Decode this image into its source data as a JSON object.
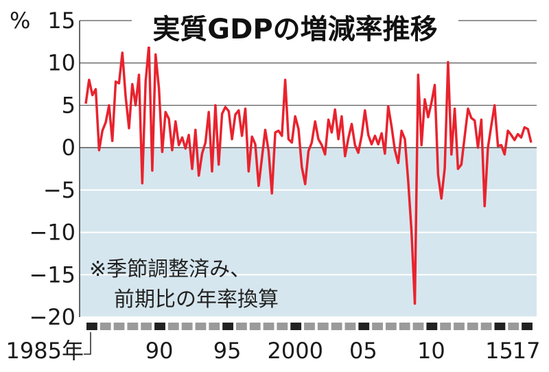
{
  "chart_data": {
    "type": "line",
    "title": "実質GDPの増減率推移",
    "annotation": [
      "※季節調整済み、",
      "前期比の年率換算"
    ],
    "y_unit": "%",
    "ylim": [
      -20,
      15
    ],
    "y_ticks": [
      15,
      10,
      5,
      0,
      -5,
      -10,
      -15,
      -20
    ],
    "y_tick_labels": [
      "15",
      "10",
      "5",
      "0",
      "−5",
      "−10",
      "−15",
      "−20"
    ],
    "x_start_year": 1985,
    "x_end_year": 2017,
    "x_tick_labels": [
      {
        "year": 1985,
        "label": "1985年"
      },
      {
        "year": 1990,
        "label": "90"
      },
      {
        "year": 1995,
        "label": "95"
      },
      {
        "year": 2000,
        "label": "2000"
      },
      {
        "year": 2005,
        "label": "05"
      },
      {
        "year": 2010,
        "label": "10"
      },
      {
        "year": 2015,
        "label": "15"
      },
      {
        "year": 2017,
        "label": "17"
      }
    ],
    "grid": true,
    "negative_region_color": "#d6e6ee",
    "line_color": "#e8232e",
    "series": [
      {
        "values": [
          5.2,
          8.0,
          6.2,
          6.9,
          -0.3,
          2.0,
          3.0,
          5.0,
          0.8,
          7.8,
          7.6,
          11.2,
          6.0,
          2.3,
          7.5,
          5.0,
          8.6,
          -4.2,
          7.8,
          12.1,
          -2.7,
          11.0,
          7.0,
          -0.5,
          4.2,
          3.4,
          -0.3,
          3.1,
          0.3,
          1.2,
          -0.1,
          1.5,
          -2.5,
          2.1,
          -3.3,
          -0.7,
          0.6,
          4.2,
          -2.8,
          5.0,
          -2.0,
          4.0,
          4.8,
          4.3,
          1.0,
          3.9,
          4.4,
          1.4,
          4.6,
          -2.8,
          1.3,
          0.4,
          -4.5,
          -1.2,
          2.1,
          -0.4,
          -5.4,
          1.8,
          2.0,
          1.4,
          8.0,
          1.0,
          0.6,
          3.7,
          2.2,
          -2.3,
          -4.3,
          -0.4,
          0.6,
          3.1,
          1.0,
          0.3,
          -0.8,
          3.3,
          1.8,
          4.5,
          1.0,
          3.7,
          -1.0,
          1.1,
          2.8,
          0.3,
          -0.6,
          1.4,
          4.4,
          1.5,
          0.4,
          1.4,
          0.4,
          1.7,
          -0.7,
          4.9,
          2.5,
          -0.3,
          -1.8,
          2.0,
          1.0,
          -3.9,
          -9.8,
          -18.4,
          8.6,
          0.3,
          5.7,
          3.6,
          5.3,
          7.4,
          -3.2,
          -6.0,
          -2.4,
          10.1,
          -0.8,
          4.6,
          -2.5,
          -2.0,
          1.3,
          4.6,
          3.5,
          3.2,
          0.0,
          3.3,
          -6.9,
          0.0,
          2.6,
          5.0,
          0.2,
          0.3,
          -0.8,
          2.0,
          1.5,
          0.9,
          1.6,
          1.2,
          2.4,
          2.2,
          0.6
        ]
      }
    ]
  }
}
